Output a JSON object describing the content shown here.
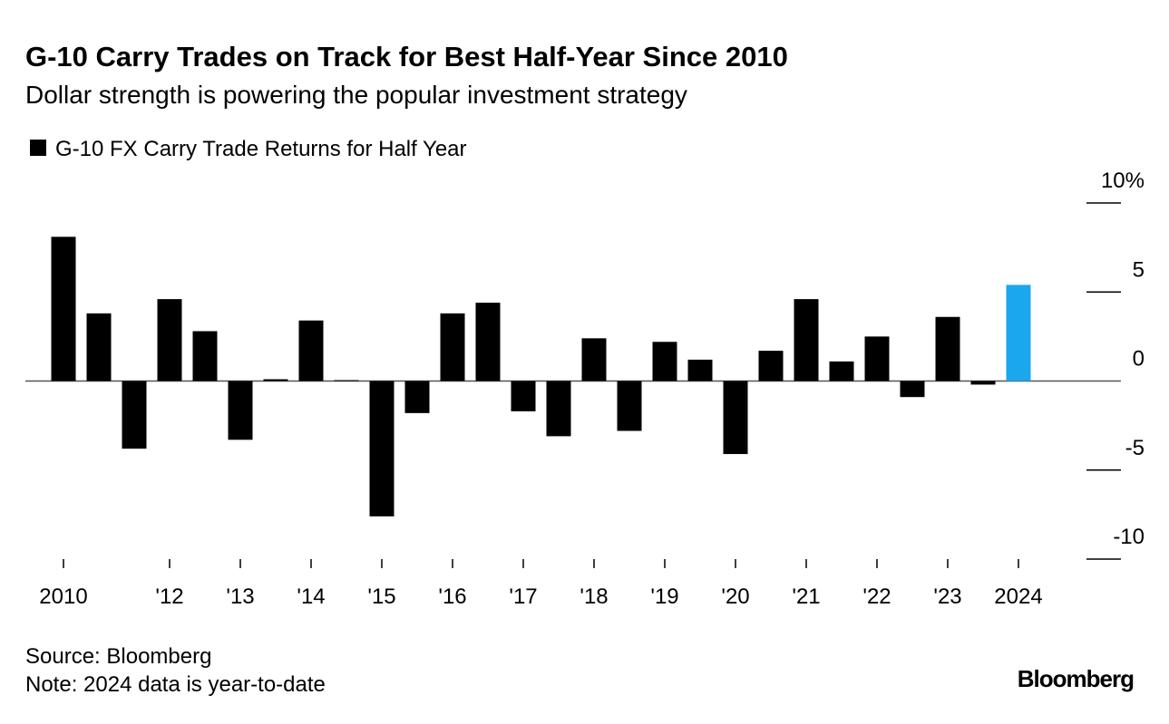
{
  "chart_data": {
    "type": "bar",
    "title": "G-10 Carry Trades on Track for Best Half-Year Since 2010",
    "subtitle": "Dollar strength is powering the popular investment strategy",
    "categories": [
      "2010",
      null,
      null,
      "'12",
      null,
      "'13",
      null,
      "'14",
      null,
      "'15",
      null,
      "'16",
      null,
      "'17",
      null,
      "'18",
      null,
      "'19",
      null,
      "'20",
      null,
      "'21",
      null,
      "'22",
      null,
      "'23",
      null,
      "2024"
    ],
    "series": [
      {
        "name": "G-10 FX Carry Trade Returns for Half Year",
        "color": "#000000",
        "values": [
          8.1,
          3.8,
          -3.8,
          4.6,
          2.8,
          -3.3,
          0.1,
          3.4,
          0.05,
          -7.6,
          -1.8,
          3.8,
          4.4,
          -1.7,
          -3.1,
          2.4,
          -2.8,
          2.2,
          1.2,
          -4.1,
          1.7,
          4.6,
          1.1,
          2.5,
          -0.9,
          3.6,
          -0.2,
          5.4
        ],
        "colors": [
          "#000000",
          "#000000",
          "#000000",
          "#000000",
          "#000000",
          "#000000",
          "#000000",
          "#000000",
          "#000000",
          "#000000",
          "#000000",
          "#000000",
          "#000000",
          "#000000",
          "#000000",
          "#000000",
          "#000000",
          "#000000",
          "#000000",
          "#000000",
          "#000000",
          "#000000",
          "#000000",
          "#000000",
          "#000000",
          "#000000",
          "#000000",
          "#1aa7ec"
        ]
      }
    ],
    "ylim": [
      -10,
      10
    ],
    "yticks": [
      {
        "value": 10,
        "label": "10%"
      },
      5,
      0,
      -5,
      -10
    ],
    "source": "Source: Bloomberg",
    "note": "Note: 2024 data is year-to-date",
    "brand": "Bloomberg"
  }
}
